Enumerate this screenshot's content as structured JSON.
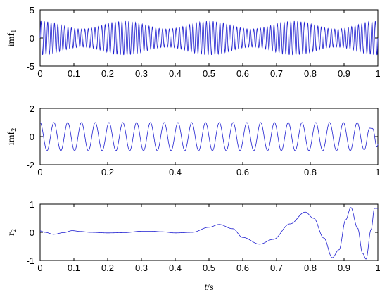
{
  "figure": {
    "xlabel_var": "t",
    "xlabel_unit": "/s",
    "line_color": "#1f1fd0"
  },
  "chart_data": [
    {
      "type": "line",
      "ylabel_main": "imf",
      "ylabel_sub": "1",
      "xlim": [
        0,
        1
      ],
      "ylim": [
        -5,
        5
      ],
      "x_ticks": [
        0,
        0.1,
        0.2,
        0.3,
        0.4,
        0.5,
        0.6,
        0.7,
        0.8,
        0.9,
        1
      ],
      "x_tick_labels": [
        "0",
        "0.1",
        "0.2",
        "0.3",
        "0.4",
        "0.5",
        "0.6",
        "0.7",
        "0.8",
        "0.9",
        "1"
      ],
      "y_ticks": [
        -5,
        0,
        5
      ],
      "y_tick_labels": [
        "-5",
        "0",
        "5"
      ],
      "series": [
        {
          "function": "amplitude-modulated sinusoid",
          "carrier_freq_hz": 100,
          "envelope": {
            "base": 2.3,
            "swing": 0.7,
            "freq_hz": 4,
            "phase_deg": 0
          }
        }
      ]
    },
    {
      "type": "line",
      "ylabel_main": "imf",
      "ylabel_sub": "2",
      "xlim": [
        0,
        1
      ],
      "ylim": [
        -2,
        2
      ],
      "x_ticks": [
        0,
        0.2,
        0.4,
        0.6,
        0.8,
        1
      ],
      "x_tick_labels": [
        "0",
        "0.2",
        "0.4",
        "0.6",
        "0.8",
        "1"
      ],
      "y_ticks": [
        -2,
        0,
        2
      ],
      "y_tick_labels": [
        "-2",
        "0",
        "2"
      ],
      "series": [
        {
          "function": "sinusoid",
          "freq_hz": 24.5,
          "amplitude": 1.0,
          "phase_deg": 90,
          "end_distortion_from": 0.95
        }
      ]
    },
    {
      "type": "line",
      "ylabel_main": "r",
      "ylabel_sub": "2",
      "xlim": [
        0,
        1
      ],
      "ylim": [
        -1,
        1
      ],
      "x_ticks": [
        0,
        0.1,
        0.2,
        0.3,
        0.4,
        0.5,
        0.6,
        0.7,
        0.8,
        0.9,
        1
      ],
      "x_tick_labels": [
        "0",
        "0.1",
        "0.2",
        "0.3",
        "0.4",
        "0.5",
        "0.6",
        "0.7",
        "0.8",
        "0.9",
        "1"
      ],
      "y_ticks": [
        -1,
        0,
        1
      ],
      "y_tick_labels": [
        "-1",
        "0",
        "1"
      ],
      "series": [
        {
          "function": "piecewise curve through key points",
          "points": [
            [
              0,
              0.05
            ],
            [
              0.015,
              0.0
            ],
            [
              0.04,
              -0.07
            ],
            [
              0.07,
              -0.01
            ],
            [
              0.095,
              0.06
            ],
            [
              0.12,
              0.03
            ],
            [
              0.15,
              0.0
            ],
            [
              0.2,
              -0.02
            ],
            [
              0.25,
              -0.01
            ],
            [
              0.3,
              0.04
            ],
            [
              0.33,
              0.04
            ],
            [
              0.36,
              0.02
            ],
            [
              0.4,
              -0.02
            ],
            [
              0.45,
              0.0
            ],
            [
              0.5,
              0.18
            ],
            [
              0.53,
              0.28
            ],
            [
              0.57,
              0.13
            ],
            [
              0.6,
              -0.18
            ],
            [
              0.65,
              -0.42
            ],
            [
              0.69,
              -0.25
            ],
            [
              0.74,
              0.3
            ],
            [
              0.785,
              0.72
            ],
            [
              0.81,
              0.5
            ],
            [
              0.84,
              -0.2
            ],
            [
              0.865,
              -0.9
            ],
            [
              0.885,
              -0.62
            ],
            [
              0.905,
              0.45
            ],
            [
              0.92,
              0.88
            ],
            [
              0.94,
              0.15
            ],
            [
              0.955,
              -0.75
            ],
            [
              0.965,
              -0.95
            ],
            [
              0.98,
              0.1
            ],
            [
              0.99,
              0.85
            ],
            [
              1.0,
              0.85
            ]
          ]
        }
      ]
    }
  ]
}
